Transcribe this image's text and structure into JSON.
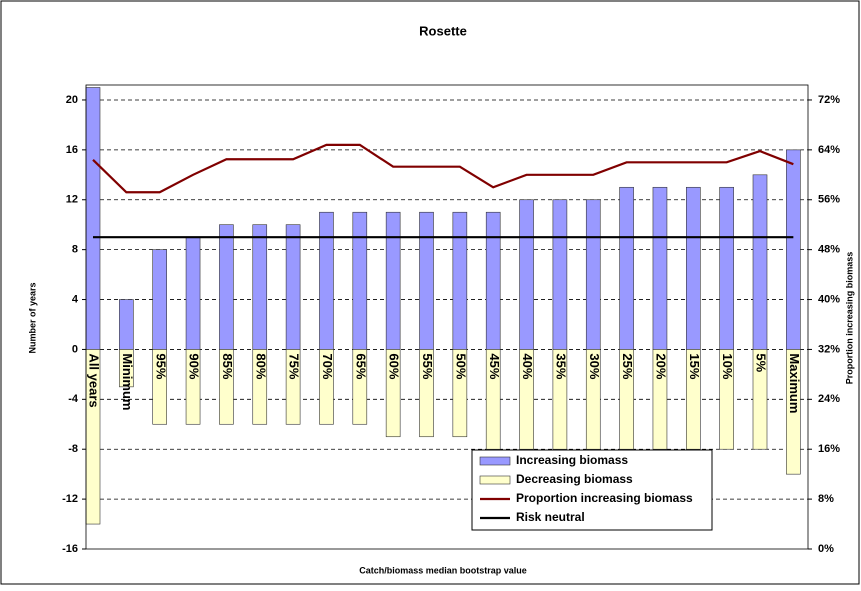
{
  "chart_data": {
    "type": "bar-line",
    "title": "Rosette",
    "xlabel": "Catch/biomass median bootstrap value",
    "ylabel": "Number of years",
    "y2label": "Proportion increasing biomass",
    "categories": [
      "All years",
      "Minimum",
      "95%",
      "90%",
      "85%",
      "80%",
      "75%",
      "70%",
      "65%",
      "60%",
      "55%",
      "50%",
      "45%",
      "40%",
      "35%",
      "30%",
      "25%",
      "20%",
      "15%",
      "10%",
      "5%",
      "Maximum"
    ],
    "ylim": [
      -16,
      21.2
    ],
    "yticks": [
      -16,
      -12,
      -8,
      -4,
      0,
      4,
      8,
      12,
      16,
      20
    ],
    "y2lim": [
      0,
      74.4
    ],
    "y2ticks": [
      {
        "value": 0,
        "label": "0%"
      },
      {
        "value": 8,
        "label": "8%"
      },
      {
        "value": 16,
        "label": "16%"
      },
      {
        "value": 24,
        "label": "24%"
      },
      {
        "value": 32,
        "label": "32%"
      },
      {
        "value": 40,
        "label": "40%"
      },
      {
        "value": 48,
        "label": "48%"
      },
      {
        "value": 56,
        "label": "56%"
      },
      {
        "value": 64,
        "label": "64%"
      },
      {
        "value": 72,
        "label": "72%"
      }
    ],
    "grid": true,
    "series": [
      {
        "name": "Increasing biomass",
        "kind": "bar",
        "color": "#9999ff",
        "values": [
          21,
          4,
          8,
          9,
          10,
          10,
          10,
          11,
          11,
          11,
          11,
          11,
          11,
          12,
          12,
          12,
          13,
          13,
          13,
          13,
          14,
          16
        ]
      },
      {
        "name": "Decreasing biomass",
        "kind": "bar",
        "color": "#ffffcc",
        "values": [
          -14,
          -3,
          -6,
          -6,
          -6,
          -6,
          -6,
          -6,
          -6,
          -7,
          -7,
          -7,
          -8,
          -8,
          -8,
          -8,
          -8,
          -8,
          -8,
          -8,
          -8,
          -10
        ]
      },
      {
        "name": "Proportion increasing biomass",
        "kind": "line",
        "axis": "y2",
        "color": "#800000",
        "values": [
          62.4,
          57.2,
          57.2,
          60,
          62.5,
          62.5,
          62.5,
          64.8,
          64.8,
          61.3,
          61.3,
          61.3,
          58,
          60,
          60,
          60,
          62,
          62,
          62,
          62,
          63.8,
          61.7
        ]
      },
      {
        "name": "Risk neutral",
        "kind": "line",
        "axis": "y2",
        "color": "#000000",
        "values": [
          50,
          50,
          50,
          50,
          50,
          50,
          50,
          50,
          50,
          50,
          50,
          50,
          50,
          50,
          50,
          50,
          50,
          50,
          50,
          50,
          50,
          50
        ]
      }
    ]
  }
}
